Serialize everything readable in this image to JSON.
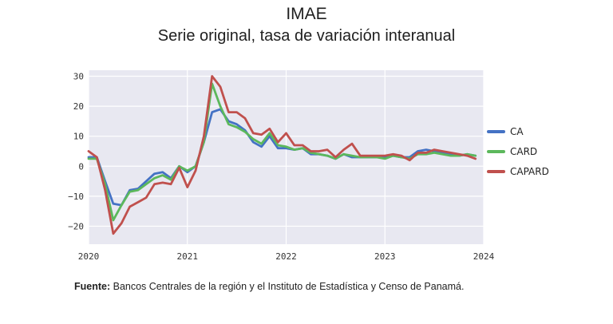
{
  "header": {
    "title": "IMAE",
    "subtitle": "Serie original, tasa de variación interanual"
  },
  "footer": {
    "source_label": "Fuente:",
    "source_text": " Bancos Centrales de la región y el Instituto de Estadística y Censo de Panamá."
  },
  "chart_data": {
    "type": "line",
    "grid": true,
    "legend_position": "right",
    "xlim": [
      2020.0,
      2024.0
    ],
    "ylim": [
      -26,
      32
    ],
    "x_ticks": [
      "2020",
      "2021",
      "2022",
      "2023",
      "2024"
    ],
    "y_ticks": [
      "30",
      "20",
      "10",
      "0",
      "−10",
      "−20"
    ],
    "x": [
      2020.0,
      2020.083,
      2020.167,
      2020.25,
      2020.333,
      2020.417,
      2020.5,
      2020.583,
      2020.667,
      2020.75,
      2020.833,
      2020.917,
      2021.0,
      2021.083,
      2021.167,
      2021.25,
      2021.333,
      2021.417,
      2021.5,
      2021.583,
      2021.667,
      2021.75,
      2021.833,
      2021.917,
      2022.0,
      2022.083,
      2022.167,
      2022.25,
      2022.333,
      2022.417,
      2022.5,
      2022.583,
      2022.667,
      2022.75,
      2022.833,
      2022.917,
      2023.0,
      2023.083,
      2023.167,
      2023.25,
      2023.333,
      2023.417,
      2023.5,
      2023.583,
      2023.667,
      2023.75,
      2023.833,
      2023.917
    ],
    "series": [
      {
        "name": "CA",
        "color": "#4472c4",
        "values": [
          3,
          3,
          -5,
          -12.5,
          -13,
          -8,
          -7.5,
          -5,
          -2.5,
          -2,
          -4,
          0,
          -2,
          0,
          8,
          18,
          19,
          15,
          14,
          12,
          8,
          6.5,
          10,
          6,
          6,
          5.5,
          6,
          4,
          4,
          3.5,
          2.5,
          4,
          3,
          3,
          3,
          3,
          3,
          3.5,
          3,
          3,
          5,
          5.5,
          5,
          4.5,
          4,
          3.5,
          4,
          3.5
        ]
      },
      {
        "name": "CARD",
        "color": "#5cb85c",
        "values": [
          2.5,
          2.5,
          -6,
          -18,
          -13,
          -8.5,
          -8,
          -6,
          -4,
          -3,
          -4.5,
          0,
          -1.5,
          0,
          8,
          27.5,
          20,
          14,
          13,
          11.5,
          9,
          7.5,
          11,
          7,
          6.5,
          5.5,
          6,
          4.5,
          4,
          3.5,
          2.5,
          4,
          3.5,
          3,
          3,
          3,
          2.5,
          3.5,
          3,
          2.5,
          4,
          4,
          4.5,
          4,
          3.5,
          3.5,
          4,
          3.5
        ]
      },
      {
        "name": "CAPARD",
        "color": "#c0504d",
        "values": [
          5,
          3,
          -8,
          -22.5,
          -19,
          -13.5,
          -12,
          -10.5,
          -6,
          -5.5,
          -6,
          -0.5,
          -7,
          -1.5,
          10,
          30,
          26.5,
          18,
          18,
          16,
          11,
          10.5,
          12.5,
          8,
          11,
          7,
          7,
          5,
          5,
          5.5,
          3,
          5.5,
          7.5,
          3.5,
          3.5,
          3.5,
          3.5,
          4,
          3.5,
          2,
          4.5,
          4.5,
          5.5,
          5,
          4.5,
          4,
          3.5,
          2.5
        ]
      }
    ]
  }
}
